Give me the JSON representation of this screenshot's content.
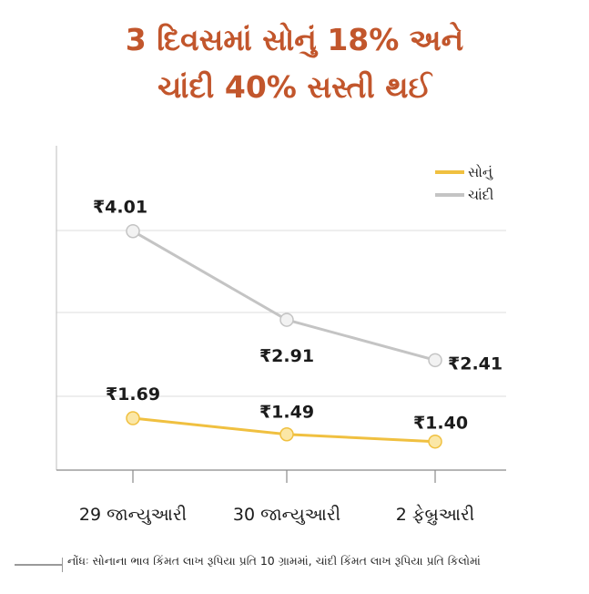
{
  "title_lines": [
    "3 દિવસમાં સોનું 18% અને",
    "ચાંદી 40% સસ્તી થઈ"
  ],
  "note": "નોંધઃ સોનાના ભાવ કિંમત લાખ રૂપિયા પ્રતિ 10 ગ્રામમાં, ચાંદી કિંમત લાખ રૂપિયા પ્રતિ કિલોમાં",
  "colors": {
    "title": "#c2562c",
    "gold": "#f0c040",
    "silver": "#c4c4c4",
    "grid": "#dcdcdc"
  },
  "chart_data": {
    "type": "line",
    "categories": [
      "29 જાન્યુઆરી",
      "30 જાન્યુઆરી",
      "2 ફેબ્રુઆરી"
    ],
    "series": [
      {
        "name": "સોનું",
        "color": "#f0c040",
        "values": [
          1.69,
          1.49,
          1.4
        ],
        "labels": [
          "₹1.69",
          "₹1.49",
          "₹1.40"
        ]
      },
      {
        "name": "ચાંદી",
        "color": "#c4c4c4",
        "values": [
          4.01,
          2.91,
          2.41
        ],
        "labels": [
          "₹4.01",
          "₹2.91",
          "₹2.41"
        ]
      }
    ],
    "legend_position": "top-right",
    "grid": true
  }
}
